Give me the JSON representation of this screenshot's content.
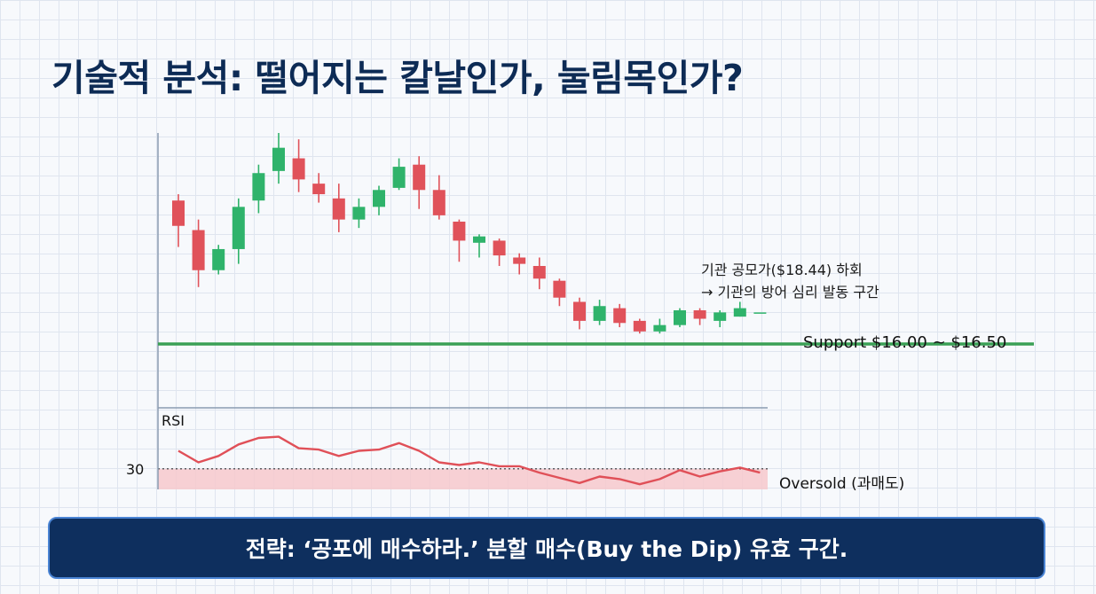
{
  "title": "기술적 분석: 떨어지는 칼날인가, 눌림목인가?",
  "annotation": {
    "line1": "기관 공모가($18.44) 하회",
    "line2": "→ 기관의 방어 심리 발동 구간"
  },
  "support_label": "Support $16.00 ~ $16.50",
  "rsi_label": "RSI",
  "rsi_level_label": "30",
  "oversold_label": "Oversold (과매도)",
  "banner": "전략: ‘공포에 매수하라.’ 분할 매수(Buy the Dip) 유효 구간.",
  "colors": {
    "up": "#2fb36b",
    "down": "#e0525a",
    "support": "#3aa055",
    "rsi": "#e05058",
    "oversold_fill": "#f7c9cc"
  },
  "chart_data": [
    {
      "type": "candlestick",
      "price_ylim": [
        15.2,
        25.7
      ],
      "support_range": [
        16.0,
        16.5
      ],
      "candles": [
        {
          "o": 22.5,
          "h": 22.8,
          "l": 20.3,
          "c": 21.3
        },
        {
          "o": 21.1,
          "h": 21.6,
          "l": 18.4,
          "c": 19.2
        },
        {
          "o": 19.2,
          "h": 20.4,
          "l": 19.0,
          "c": 20.2
        },
        {
          "o": 20.2,
          "h": 22.6,
          "l": 19.5,
          "c": 22.2
        },
        {
          "o": 22.5,
          "h": 24.2,
          "l": 21.9,
          "c": 23.8
        },
        {
          "o": 23.9,
          "h": 25.7,
          "l": 23.3,
          "c": 25.0
        },
        {
          "o": 24.5,
          "h": 25.4,
          "l": 22.9,
          "c": 23.5
        },
        {
          "o": 23.3,
          "h": 23.8,
          "l": 22.4,
          "c": 22.8
        },
        {
          "o": 22.6,
          "h": 23.3,
          "l": 21.0,
          "c": 21.6
        },
        {
          "o": 21.6,
          "h": 22.6,
          "l": 21.2,
          "c": 22.2
        },
        {
          "o": 22.2,
          "h": 23.2,
          "l": 21.8,
          "c": 23.0
        },
        {
          "o": 23.1,
          "h": 24.5,
          "l": 23.0,
          "c": 24.1
        },
        {
          "o": 24.2,
          "h": 24.6,
          "l": 22.1,
          "c": 23.0
        },
        {
          "o": 23.0,
          "h": 23.7,
          "l": 21.6,
          "c": 21.8
        },
        {
          "o": 21.5,
          "h": 21.6,
          "l": 19.6,
          "c": 20.6
        },
        {
          "o": 20.5,
          "h": 20.9,
          "l": 19.8,
          "c": 20.8
        },
        {
          "o": 20.6,
          "h": 20.7,
          "l": 19.4,
          "c": 19.9
        },
        {
          "o": 19.8,
          "h": 20.0,
          "l": 19.0,
          "c": 19.5
        },
        {
          "o": 19.4,
          "h": 19.8,
          "l": 18.3,
          "c": 18.8
        },
        {
          "o": 18.7,
          "h": 18.8,
          "l": 17.5,
          "c": 17.9
        },
        {
          "o": 17.7,
          "h": 17.9,
          "l": 16.4,
          "c": 16.8
        },
        {
          "o": 16.8,
          "h": 17.8,
          "l": 16.6,
          "c": 17.5
        },
        {
          "o": 17.4,
          "h": 17.6,
          "l": 16.5,
          "c": 16.7
        },
        {
          "o": 16.8,
          "h": 16.9,
          "l": 16.2,
          "c": 16.3
        },
        {
          "o": 16.3,
          "h": 16.9,
          "l": 16.2,
          "c": 16.6
        },
        {
          "o": 16.6,
          "h": 17.4,
          "l": 16.5,
          "c": 17.3
        },
        {
          "o": 17.3,
          "h": 17.4,
          "l": 16.6,
          "c": 16.9
        },
        {
          "o": 16.8,
          "h": 17.3,
          "l": 16.5,
          "c": 17.2
        },
        {
          "o": 17.0,
          "h": 17.7,
          "l": 17.0,
          "c": 17.4
        },
        {
          "o": 17.2,
          "h": 17.2,
          "l": 17.2,
          "c": 17.2
        }
      ]
    },
    {
      "type": "line",
      "title": "RSI",
      "ylim": [
        22,
        52
      ],
      "oversold_level": 30,
      "values": [
        37,
        32.5,
        35,
        39.5,
        42,
        42.5,
        38,
        37.5,
        35,
        37,
        37.5,
        40,
        37,
        32.5,
        31.5,
        32.5,
        31,
        31,
        28.5,
        26.5,
        24.5,
        27,
        26,
        24,
        26,
        29.5,
        27,
        29,
        30.5,
        28.5
      ]
    }
  ]
}
